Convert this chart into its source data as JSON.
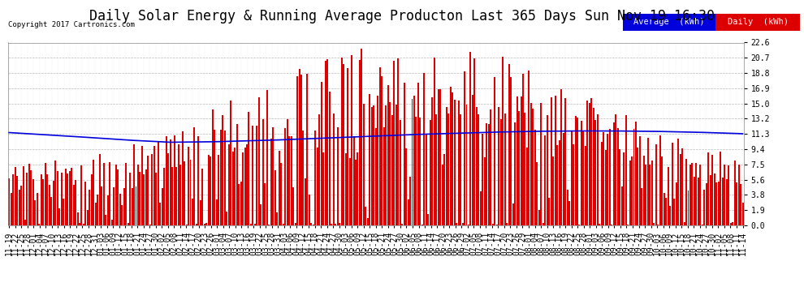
{
  "title": "Daily Solar Energy & Running Average Producton Last 365 Days Sun Nov 19 16:30",
  "copyright": "Copyright 2017 Cartronics.com",
  "legend_average_label": "Average  (kWh)",
  "legend_daily_label": "Daily  (kWh)",
  "average_color": "#0000dd",
  "daily_color": "#dd0000",
  "background_color": "#ffffff",
  "plot_bg_color": "#ffffff",
  "grid_color": "#bbbbbb",
  "ylim": [
    0.0,
    22.6
  ],
  "yticks": [
    0.0,
    1.9,
    3.8,
    5.6,
    7.5,
    9.4,
    11.3,
    13.2,
    15.0,
    16.9,
    18.8,
    20.7,
    22.6
  ],
  "title_fontsize": 12,
  "tick_fontsize": 7,
  "legend_fontsize": 7.5,
  "copyright_fontsize": 6.5,
  "bar_width": 0.8,
  "n_days": 365,
  "x_labels": [
    "11-19",
    "11-22",
    "11-25",
    "11-28",
    "12-01",
    "12-04",
    "12-07",
    "12-10",
    "12-13",
    "12-16",
    "12-19",
    "12-22",
    "12-25",
    "12-28",
    "12-31",
    "01-03",
    "01-06",
    "01-09",
    "01-12",
    "01-15",
    "01-18",
    "01-21",
    "01-24",
    "01-27",
    "01-30",
    "02-02",
    "02-05",
    "02-08",
    "02-11",
    "02-14",
    "02-17",
    "02-20",
    "02-23",
    "02-26",
    "03-01",
    "03-04",
    "03-07",
    "03-10",
    "03-13",
    "03-16",
    "03-19",
    "03-22",
    "03-25",
    "03-28",
    "03-31",
    "04-03",
    "04-06",
    "04-09",
    "04-12",
    "04-15",
    "04-18",
    "04-21",
    "04-24",
    "04-27",
    "04-30",
    "05-03",
    "05-06",
    "05-09",
    "05-12",
    "05-15",
    "05-18",
    "05-21",
    "05-24",
    "05-27",
    "05-30",
    "06-02",
    "06-05",
    "06-08",
    "06-11",
    "06-14",
    "06-17",
    "06-20",
    "06-23",
    "06-26",
    "06-29",
    "07-02",
    "07-05",
    "07-08",
    "07-11",
    "07-14",
    "07-17",
    "07-20",
    "07-23",
    "07-26",
    "07-29",
    "08-01",
    "08-04",
    "08-07",
    "08-10",
    "08-13",
    "08-16",
    "08-19",
    "08-22",
    "08-25",
    "08-28",
    "09-01",
    "09-03",
    "09-06",
    "09-09",
    "09-12",
    "09-15",
    "09-18",
    "09-21",
    "09-24",
    "09-27",
    "09-30",
    "10-03",
    "10-06",
    "10-09",
    "10-12",
    "10-15",
    "10-18",
    "10-21",
    "10-24",
    "10-27",
    "10-30",
    "11-02",
    "11-05",
    "11-08",
    "11-11",
    "11-14"
  ],
  "avg_line_points": [
    [
      0,
      11.45
    ],
    [
      30,
      11.0
    ],
    [
      60,
      10.5
    ],
    [
      80,
      10.25
    ],
    [
      100,
      10.3
    ],
    [
      130,
      10.5
    ],
    [
      160,
      10.8
    ],
    [
      180,
      11.0
    ],
    [
      200,
      11.2
    ],
    [
      220,
      11.35
    ],
    [
      240,
      11.5
    ],
    [
      260,
      11.6
    ],
    [
      280,
      11.65
    ],
    [
      300,
      11.65
    ],
    [
      320,
      11.6
    ],
    [
      340,
      11.5
    ],
    [
      360,
      11.35
    ],
    [
      364,
      11.3
    ]
  ]
}
